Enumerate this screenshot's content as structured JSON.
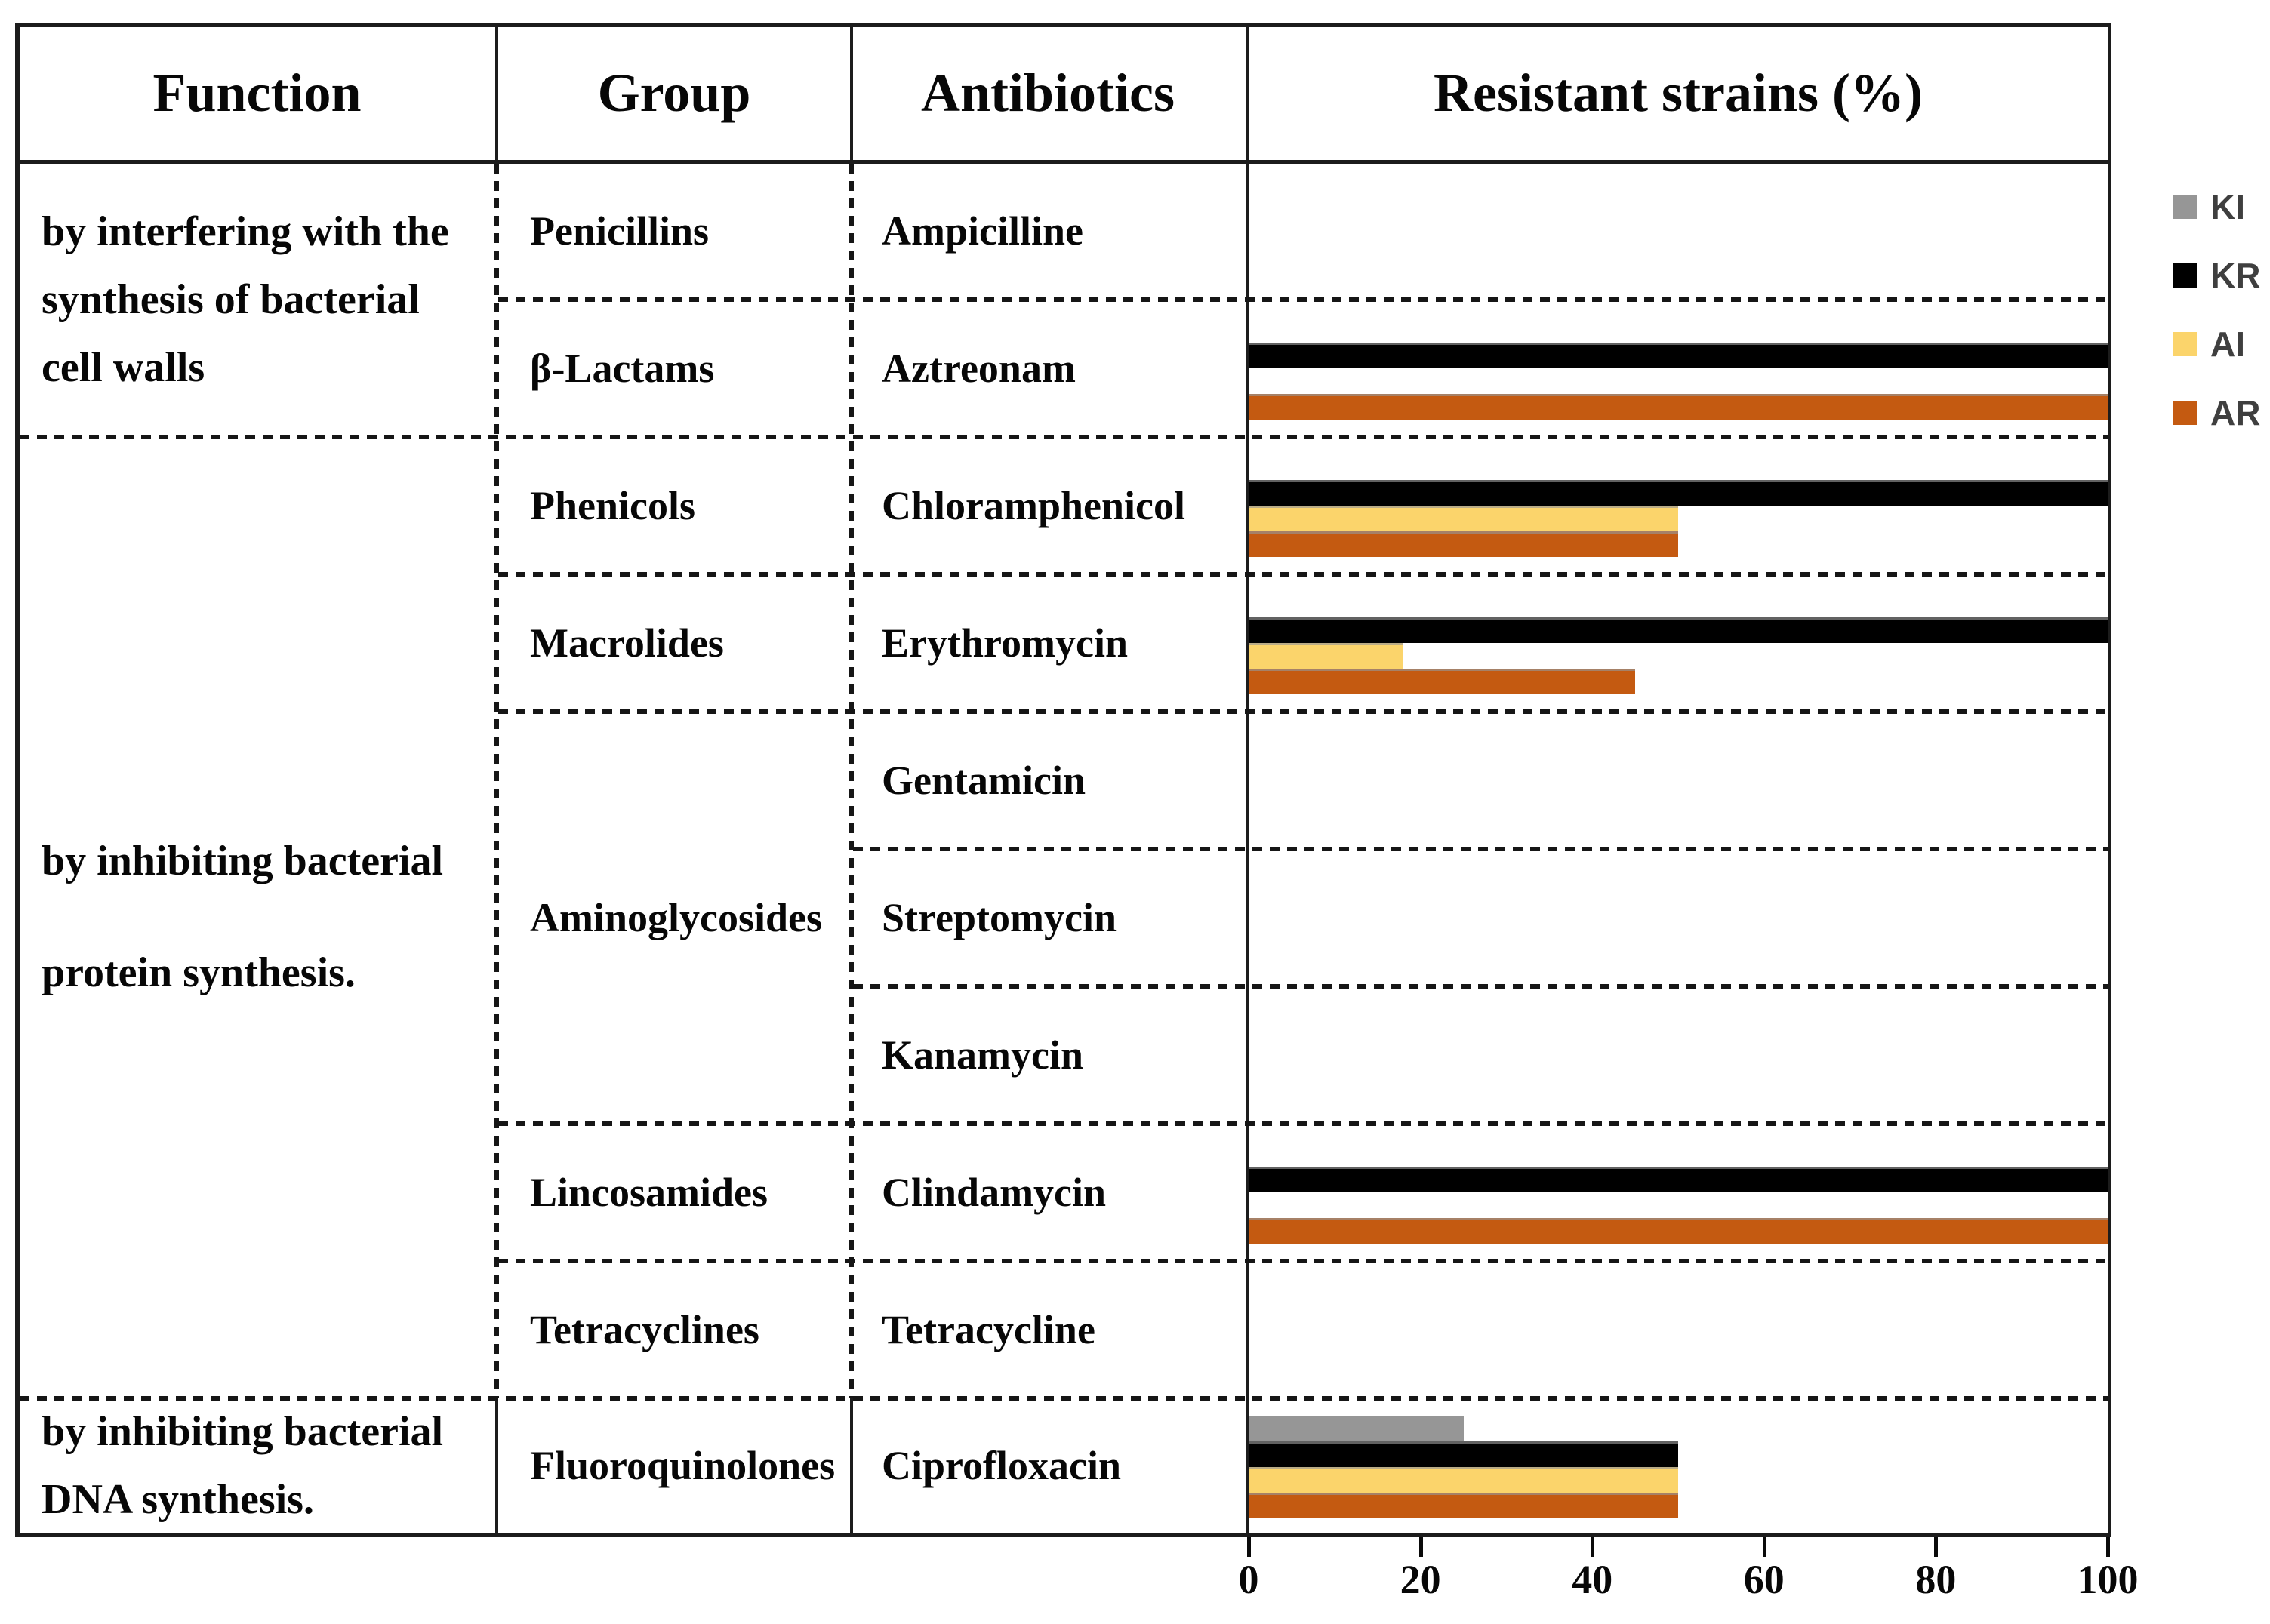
{
  "header": {
    "function": "Function",
    "group": "Group",
    "antibiotics": "Antibiotics",
    "resistant": "Resistant strains (%)"
  },
  "functions": [
    {
      "lines": [
        "by interfering with the",
        "synthesis of bacterial",
        "cell walls"
      ]
    },
    {
      "lines": [
        "by inhibiting bacterial",
        "protein synthesis."
      ]
    },
    {
      "lines": [
        "by inhibiting bacterial",
        "DNA synthesis."
      ]
    }
  ],
  "groups": [
    "Penicillins",
    "β-Lactams",
    "Phenicols",
    "Macrolides",
    "Aminoglycosides",
    "Lincosamides",
    "Tetracyclines",
    "Fluoroquinolones"
  ],
  "antibiotics": [
    "Ampicilline",
    "Aztreonam",
    "Chloramphenicol",
    "Erythromycin",
    "Gentamicin",
    "Streptomycin",
    "Kanamycin",
    "Clindamycin",
    "Tetracycline",
    "Ciprofloxacin"
  ],
  "legend": {
    "items": [
      {
        "label": "KI",
        "color": "#969696"
      },
      {
        "label": "KR",
        "color": "#000000"
      },
      {
        "label": "AI",
        "color": "#fbd46b"
      },
      {
        "label": "AR",
        "color": "#c45a11"
      }
    ]
  },
  "axis": {
    "ticks": [
      "0",
      "20",
      "40",
      "60",
      "80",
      "100"
    ]
  },
  "chart_data": {
    "type": "bar",
    "orientation": "horizontal",
    "title": "Resistant strains (%)",
    "categories": [
      "Ampicilline",
      "Aztreonam",
      "Chloramphenicol",
      "Erythromycin",
      "Gentamicin",
      "Streptomycin",
      "Kanamycin",
      "Clindamycin",
      "Tetracycline",
      "Ciprofloxacin"
    ],
    "series": [
      {
        "name": "KI",
        "color": "#969696",
        "values": [
          0,
          0,
          0,
          0,
          0,
          0,
          0,
          0,
          0,
          25
        ]
      },
      {
        "name": "KR",
        "color": "#000000",
        "values": [
          0,
          100,
          100,
          100,
          0,
          0,
          0,
          100,
          0,
          50
        ]
      },
      {
        "name": "AI",
        "color": "#fbd46b",
        "values": [
          0,
          0,
          50,
          18,
          0,
          0,
          0,
          0,
          0,
          50
        ]
      },
      {
        "name": "AR",
        "color": "#c45a11",
        "values": [
          0,
          100,
          50,
          45,
          0,
          0,
          0,
          100,
          0,
          50
        ]
      }
    ],
    "xlim": [
      0,
      100
    ],
    "xticks": [
      0,
      20,
      40,
      60,
      80,
      100
    ],
    "legend_position": "upper-right-outside",
    "grid": false
  }
}
